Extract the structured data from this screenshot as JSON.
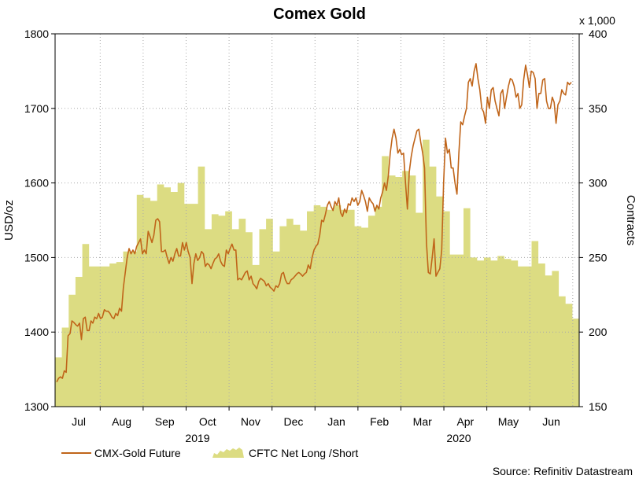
{
  "chart_data": {
    "type": "line+area",
    "title": "Comex Gold",
    "source": "Source: Refinitiv Datastream",
    "y_left": {
      "label": "USD/oz",
      "ylim": [
        1300,
        1800
      ],
      "ticks": [
        "1300",
        "1400",
        "1500",
        "1600",
        "1700",
        "1800"
      ]
    },
    "y_right": {
      "label": "Contracts",
      "multiplier": "x 1,000",
      "ylim": [
        150,
        400
      ],
      "ticks": [
        "150",
        "200",
        "250",
        "300",
        "350",
        "400"
      ]
    },
    "x": {
      "months": [
        "Jul",
        "Aug",
        "Sep",
        "Oct",
        "Nov",
        "Dec",
        "Jan",
        "Feb",
        "Mar",
        "Apr",
        "May",
        "Jun"
      ],
      "years": [
        "2019",
        "2020"
      ]
    },
    "legend": [
      "CMX-Gold Future",
      "CFTC Net Long /Short"
    ],
    "colors": {
      "gold_line": "#c0651a",
      "area_fill": "#dcdc82",
      "grid": "#aaaaaa"
    },
    "series": [
      {
        "name": "CMX-Gold Future",
        "axis": "left",
        "style": "line",
        "values": [
          1333,
          1338,
          1340,
          1338,
          1348,
          1346,
          1395,
          1398,
          1415,
          1413,
          1410,
          1408,
          1412,
          1390,
          1418,
          1420,
          1402,
          1402,
          1415,
          1412,
          1420,
          1418,
          1425,
          1418,
          1420,
          1430,
          1428,
          1428,
          1425,
          1420,
          1418,
          1425,
          1422,
          1432,
          1428,
          1460,
          1480,
          1500,
          1512,
          1505,
          1510,
          1505,
          1515,
          1520,
          1525,
          1505,
          1510,
          1505,
          1535,
          1528,
          1520,
          1530,
          1550,
          1552,
          1548,
          1508,
          1508,
          1510,
          1500,
          1492,
          1500,
          1495,
          1505,
          1512,
          1502,
          1502,
          1520,
          1510,
          1520,
          1508,
          1500,
          1465,
          1492,
          1505,
          1496,
          1500,
          1508,
          1505,
          1488,
          1492,
          1490,
          1485,
          1492,
          1498,
          1500,
          1505,
          1495,
          1490,
          1488,
          1510,
          1505,
          1512,
          1518,
          1510,
          1510,
          1470,
          1472,
          1470,
          1475,
          1480,
          1482,
          1470,
          1475,
          1465,
          1462,
          1458,
          1468,
          1472,
          1470,
          1468,
          1462,
          1465,
          1460,
          1458,
          1455,
          1462,
          1460,
          1465,
          1478,
          1480,
          1470,
          1465,
          1465,
          1470,
          1472,
          1475,
          1478,
          1480,
          1478,
          1475,
          1478,
          1480,
          1490,
          1485,
          1500,
          1510,
          1515,
          1518,
          1530,
          1550,
          1548,
          1558,
          1570,
          1575,
          1568,
          1563,
          1575,
          1570,
          1580,
          1560,
          1555,
          1565,
          1560,
          1572,
          1570,
          1580,
          1575,
          1580,
          1570,
          1575,
          1590,
          1583,
          1575,
          1562,
          1580,
          1575,
          1572,
          1562,
          1570,
          1565,
          1580,
          1588,
          1600,
          1590,
          1610,
          1640,
          1660,
          1672,
          1660,
          1640,
          1645,
          1638,
          1640,
          1600,
          1565,
          1615,
          1635,
          1650,
          1660,
          1670,
          1672,
          1655,
          1640,
          1620,
          1520,
          1480,
          1478,
          1500,
          1525,
          1475,
          1480,
          1485,
          1510,
          1600,
          1660,
          1640,
          1645,
          1620,
          1620,
          1600,
          1585,
          1640,
          1682,
          1678,
          1690,
          1700,
          1735,
          1740,
          1730,
          1750,
          1760,
          1740,
          1725,
          1700,
          1695,
          1680,
          1715,
          1700,
          1725,
          1728,
          1710,
          1700,
          1690,
          1720,
          1725,
          1700,
          1715,
          1730,
          1740,
          1738,
          1730,
          1715,
          1720,
          1700,
          1705,
          1738,
          1758,
          1745,
          1728,
          1750,
          1748,
          1740,
          1700,
          1720,
          1720,
          1738,
          1740,
          1710,
          1700,
          1700,
          1715,
          1708,
          1680,
          1705,
          1710,
          1725,
          1720,
          1718,
          1735,
          1732,
          1735
        ]
      },
      {
        "name": "CFTC Net Long /Short",
        "axis": "right",
        "style": "area-step",
        "values": [
          183,
          203,
          225,
          237,
          259,
          244,
          244,
          244,
          246,
          247,
          254,
          254,
          292,
          290,
          288,
          299,
          297,
          294,
          300,
          286,
          286,
          311,
          269,
          279,
          278,
          281,
          269,
          276,
          267,
          245,
          269,
          276,
          254,
          271,
          276,
          272,
          268,
          281,
          285,
          284,
          282,
          285,
          282,
          282,
          271,
          270,
          278,
          284,
          318,
          305,
          304,
          308,
          305,
          280,
          329,
          311,
          291,
          281,
          252,
          252,
          283,
          250,
          248,
          250,
          248,
          251,
          249,
          248,
          244,
          244,
          261,
          246,
          238,
          241,
          224,
          219,
          209
        ]
      }
    ]
  }
}
